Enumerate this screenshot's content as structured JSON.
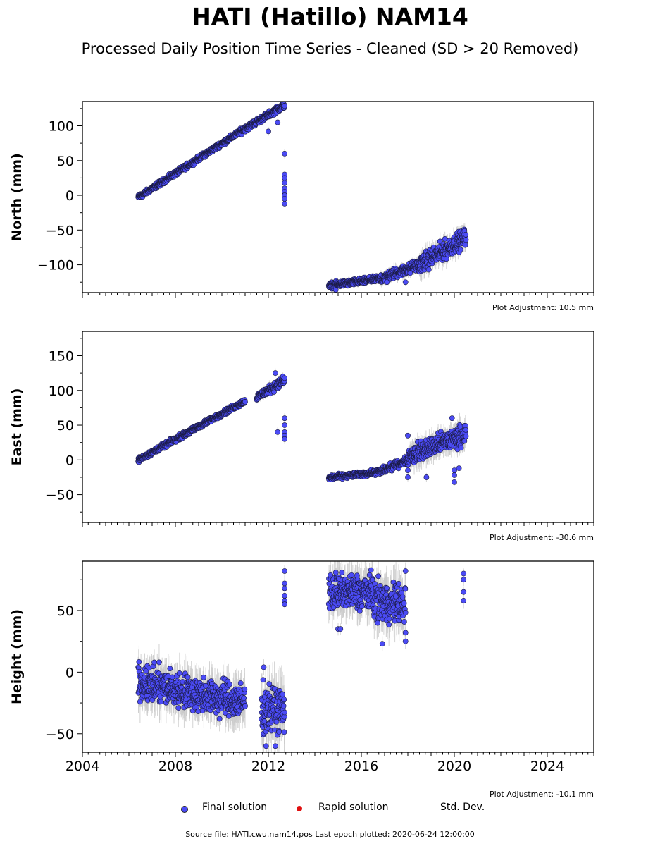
{
  "title": "HATI (Hatillo) NAM14",
  "subtitle": "Processed Daily Position Time Series - Cleaned (SD > 20 Removed)",
  "source_text": "Source file: HATI.cwu.nam14.pos  Last epoch plotted: 2020-06-24 12:00:00",
  "legend": {
    "final": "Final solution",
    "rapid": "Rapid solution",
    "std": "Std. Dev."
  },
  "colors": {
    "final": "#4b4bf5",
    "rapid": "#e01010",
    "std": "#c8c8c8"
  },
  "chart_data": [
    {
      "type": "scatter",
      "ylabel": "North (mm)",
      "adjustment": "Plot Adjustment: 10.5 mm",
      "xlim": [
        2004,
        2026
      ],
      "ylim": [
        -140,
        135
      ],
      "yticks": [
        -100,
        -50,
        0,
        50,
        100
      ],
      "xticks": [
        2004,
        2008,
        2012,
        2016,
        2020,
        2024
      ],
      "show_xticklabels": false,
      "segments": [
        {
          "x0": 2006.4,
          "x1": 2010.8,
          "y0": -3,
          "y1": 92,
          "noise": 2.5
        },
        {
          "x0": 2010.8,
          "x1": 2012.7,
          "y0": 92,
          "y1": 130,
          "noise": 3
        },
        {
          "x0": 2014.6,
          "x1": 2016.8,
          "y0": -130,
          "y1": -120,
          "noise": 3
        },
        {
          "x0": 2016.8,
          "x1": 2018.5,
          "y0": -120,
          "y1": -100,
          "noise": 5
        },
        {
          "x0": 2018.5,
          "x1": 2020.5,
          "y0": -100,
          "y1": -60,
          "noise": 9
        }
      ],
      "outliers": [
        [
          2012.0,
          92
        ],
        [
          2012.4,
          105
        ],
        [
          2012.7,
          60
        ],
        [
          2012.7,
          30
        ],
        [
          2012.7,
          25
        ],
        [
          2012.7,
          18
        ],
        [
          2012.7,
          10
        ],
        [
          2012.7,
          5
        ],
        [
          2012.7,
          0
        ],
        [
          2012.7,
          -5
        ],
        [
          2012.7,
          -12
        ],
        [
          2014.9,
          -136
        ],
        [
          2017.1,
          -125
        ],
        [
          2017.9,
          -125
        ],
        [
          2018.1,
          -112
        ]
      ]
    },
    {
      "type": "scatter",
      "ylabel": "East (mm)",
      "adjustment": "Plot Adjustment: -30.6 mm",
      "xlim": [
        2004,
        2026
      ],
      "ylim": [
        -90,
        185
      ],
      "yticks": [
        -50,
        0,
        50,
        100,
        150
      ],
      "xticks": [
        2004,
        2008,
        2012,
        2016,
        2020,
        2024
      ],
      "show_xticklabels": false,
      "segments": [
        {
          "x0": 2006.4,
          "x1": 2011.0,
          "y0": 0,
          "y1": 85,
          "noise": 2.5
        },
        {
          "x0": 2011.5,
          "x1": 2012.7,
          "y0": 90,
          "y1": 115,
          "noise": 4
        },
        {
          "x0": 2014.6,
          "x1": 2016.8,
          "y0": -26,
          "y1": -17,
          "noise": 2.5
        },
        {
          "x0": 2016.8,
          "x1": 2018.0,
          "y0": -17,
          "y1": 0,
          "noise": 3.5
        },
        {
          "x0": 2018.0,
          "x1": 2020.5,
          "y0": 5,
          "y1": 38,
          "noise": 10
        }
      ],
      "outliers": [
        [
          2012.3,
          125
        ],
        [
          2012.4,
          40
        ],
        [
          2012.7,
          60
        ],
        [
          2012.7,
          50
        ],
        [
          2012.7,
          40
        ],
        [
          2012.7,
          35
        ],
        [
          2012.7,
          30
        ],
        [
          2018.0,
          35
        ],
        [
          2018.0,
          -15
        ],
        [
          2018.0,
          -25
        ],
        [
          2018.8,
          -25
        ],
        [
          2020.0,
          -15
        ],
        [
          2020.0,
          -22
        ],
        [
          2020.0,
          -32
        ],
        [
          2020.2,
          -12
        ],
        [
          2019.9,
          60
        ]
      ]
    },
    {
      "type": "scatter",
      "ylabel": "Height (mm)",
      "adjustment": "Plot Adjustment: -10.1 mm",
      "xlim": [
        2004,
        2026
      ],
      "ylim": [
        -65,
        90
      ],
      "yticks": [
        -50,
        0,
        50
      ],
      "xticks": [
        2004,
        2008,
        2012,
        2016,
        2020,
        2024
      ],
      "show_xticklabels": true,
      "segments": [
        {
          "x0": 2006.4,
          "x1": 2011.0,
          "y0": -8,
          "y1": -25,
          "noise": 10
        },
        {
          "x0": 2011.7,
          "x1": 2012.7,
          "y0": -30,
          "y1": -30,
          "noise": 13
        },
        {
          "x0": 2014.6,
          "x1": 2016.5,
          "y0": 65,
          "y1": 65,
          "noise": 10
        },
        {
          "x0": 2016.5,
          "x1": 2017.9,
          "y0": 58,
          "y1": 55,
          "noise": 11
        }
      ],
      "outliers": [
        [
          2011.8,
          4
        ],
        [
          2011.9,
          -60
        ],
        [
          2012.3,
          -60
        ],
        [
          2012.7,
          82
        ],
        [
          2012.7,
          72
        ],
        [
          2012.7,
          68
        ],
        [
          2012.7,
          62
        ],
        [
          2012.7,
          58
        ],
        [
          2012.7,
          55
        ],
        [
          2015.0,
          35
        ],
        [
          2015.1,
          35
        ],
        [
          2016.9,
          23
        ],
        [
          2017.9,
          82
        ],
        [
          2017.9,
          25
        ],
        [
          2017.9,
          32
        ],
        [
          2020.4,
          80
        ],
        [
          2020.4,
          75
        ],
        [
          2020.4,
          65
        ],
        [
          2020.4,
          58
        ]
      ]
    }
  ]
}
